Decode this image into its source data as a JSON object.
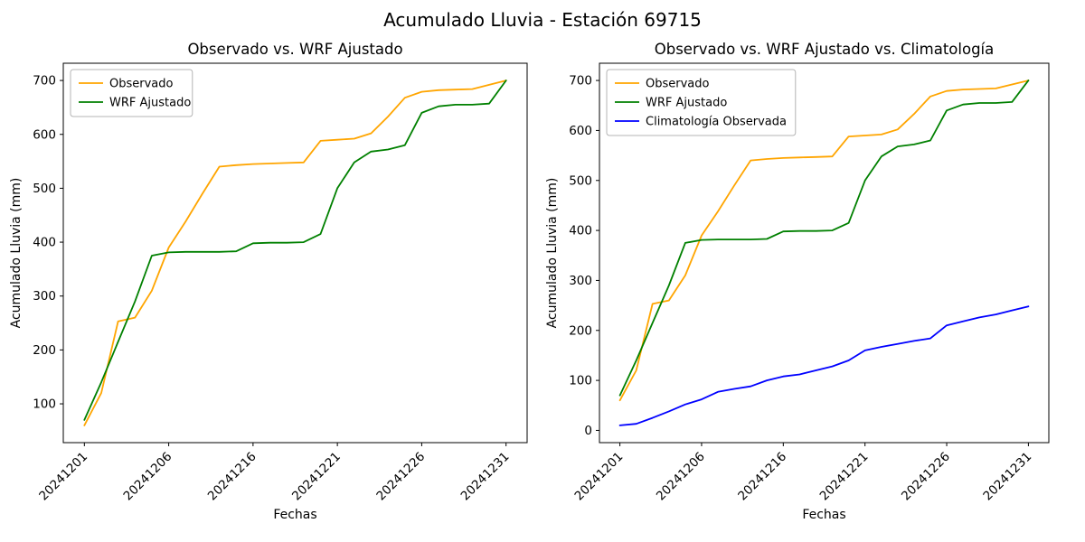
{
  "figure": {
    "suptitle": "Acumulado Lluvia - Estación 69715"
  },
  "chart_data": [
    {
      "type": "line",
      "title": "Observado vs. WRF Ajustado",
      "xlabel": "Fechas",
      "ylabel": "Acumulado Lluvia (mm)",
      "n_points": 26,
      "xlim": [
        -1.25,
        26.25
      ],
      "ylim": [
        28,
        732
      ],
      "yticks": [
        100,
        200,
        300,
        400,
        500,
        600,
        700
      ],
      "xtick_positions": [
        0,
        5,
        10,
        15,
        20,
        25
      ],
      "xtick_labels": [
        "20241201",
        "20241206",
        "20241216",
        "20241221",
        "20241226",
        "20241231"
      ],
      "grid": false,
      "legend_position": "upper-left",
      "series": [
        {
          "name": "Observado",
          "color": "#ffa500",
          "values": [
            60,
            120,
            253,
            260,
            310,
            390,
            438,
            490,
            540,
            543,
            545,
            546,
            547,
            548,
            588,
            590,
            592,
            602,
            633,
            668,
            679,
            682,
            683,
            684,
            692,
            700
          ]
        },
        {
          "name": "WRF Ajustado",
          "color": "#008000",
          "values": [
            70,
            140,
            215,
            290,
            375,
            381,
            382,
            382,
            382,
            383,
            398,
            399,
            399,
            400,
            415,
            500,
            548,
            568,
            572,
            580,
            640,
            652,
            655,
            655,
            657,
            700
          ]
        }
      ]
    },
    {
      "type": "line",
      "title": "Observado vs. WRF Ajustado vs. Climatología",
      "xlabel": "Fechas",
      "ylabel": "Acumulado Lluvia (mm)",
      "n_points": 26,
      "xlim": [
        -1.25,
        26.25
      ],
      "ylim": [
        -24.5,
        734.5
      ],
      "yticks": [
        0,
        100,
        200,
        300,
        400,
        500,
        600,
        700
      ],
      "xtick_positions": [
        0,
        5,
        10,
        15,
        20,
        25
      ],
      "xtick_labels": [
        "20241201",
        "20241206",
        "20241216",
        "20241221",
        "20241226",
        "20241231"
      ],
      "grid": false,
      "legend_position": "upper-left",
      "series": [
        {
          "name": "Observado",
          "color": "#ffa500",
          "values": [
            60,
            120,
            253,
            260,
            310,
            390,
            438,
            490,
            540,
            543,
            545,
            546,
            547,
            548,
            588,
            590,
            592,
            602,
            633,
            668,
            679,
            682,
            683,
            684,
            692,
            700
          ]
        },
        {
          "name": "WRF Ajustado",
          "color": "#008000",
          "values": [
            70,
            140,
            215,
            290,
            375,
            381,
            382,
            382,
            382,
            383,
            398,
            399,
            399,
            400,
            415,
            500,
            548,
            568,
            572,
            580,
            640,
            652,
            655,
            655,
            657,
            700
          ]
        },
        {
          "name": "Climatología Observada",
          "color": "#0000ff",
          "values": [
            10,
            13,
            25,
            38,
            52,
            62,
            77,
            83,
            88,
            100,
            108,
            112,
            120,
            128,
            140,
            160,
            167,
            173,
            179,
            184,
            210,
            218,
            226,
            232,
            240,
            248
          ]
        }
      ]
    }
  ]
}
